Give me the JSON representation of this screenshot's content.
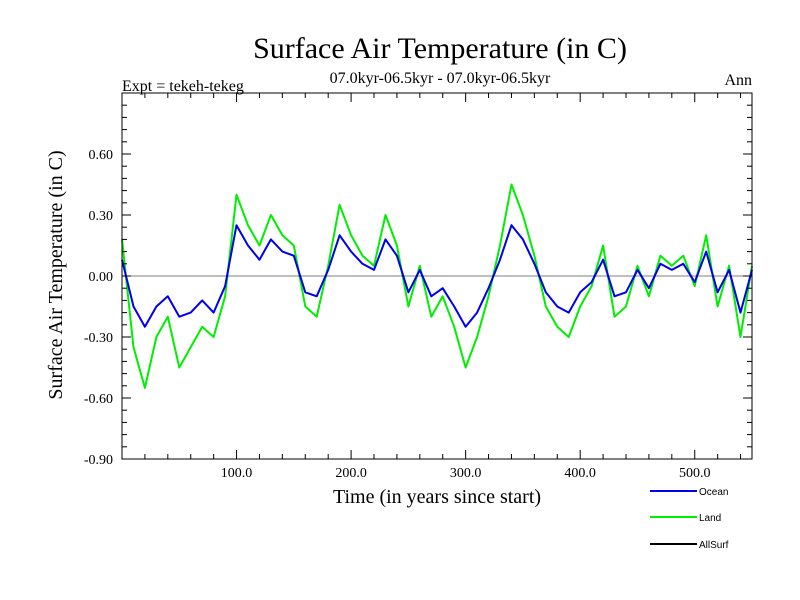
{
  "chart_data": {
    "type": "line",
    "title": "Surface Air Temperature (in C)",
    "subtitle": "07.0kyr-06.5kyr - 07.0kyr-06.5kyr",
    "expt_label": "Expt = tekeh-tekeg",
    "period_label": "Ann",
    "xlabel": "Time (in years since start)",
    "ylabel": "Surface Air Temperature (in C)",
    "xlim": [
      0,
      550
    ],
    "ylim": [
      -0.9,
      0.9
    ],
    "x_ticks": [
      100,
      200,
      300,
      400,
      500
    ],
    "x_tick_labels": [
      "100.0",
      "200.0",
      "300.0",
      "400.0",
      "500.0"
    ],
    "y_ticks": [
      -0.9,
      -0.6,
      -0.3,
      0.0,
      0.3,
      0.6
    ],
    "y_tick_labels": [
      "-0.90",
      "-0.60",
      "-0.30",
      "0.00",
      "0.30",
      "0.60"
    ],
    "reference_line": 0.0,
    "series": [
      {
        "name": "Land",
        "color": "#00ee00",
        "x": [
          0,
          10,
          20,
          30,
          40,
          50,
          60,
          70,
          80,
          90,
          100,
          110,
          120,
          130,
          140,
          150,
          160,
          170,
          180,
          190,
          200,
          210,
          220,
          230,
          240,
          250,
          260,
          270,
          280,
          290,
          300,
          310,
          320,
          330,
          340,
          350,
          360,
          370,
          380,
          390,
          400,
          410,
          420,
          430,
          440,
          450,
          460,
          470,
          480,
          490,
          500,
          510,
          520,
          530,
          540,
          550
        ],
        "values": [
          0.18,
          -0.35,
          -0.55,
          -0.3,
          -0.2,
          -0.45,
          -0.35,
          -0.25,
          -0.3,
          -0.1,
          0.4,
          0.25,
          0.15,
          0.3,
          0.2,
          0.15,
          -0.15,
          -0.2,
          0.05,
          0.35,
          0.2,
          0.1,
          0.05,
          0.3,
          0.15,
          -0.15,
          0.05,
          -0.2,
          -0.1,
          -0.25,
          -0.45,
          -0.3,
          -0.1,
          0.15,
          0.45,
          0.3,
          0.1,
          -0.15,
          -0.25,
          -0.3,
          -0.15,
          -0.05,
          0.15,
          -0.2,
          -0.15,
          0.05,
          -0.1,
          0.1,
          0.05,
          0.1,
          -0.05,
          0.2,
          -0.15,
          0.05,
          -0.3,
          0.05
        ]
      },
      {
        "name": "Ocean",
        "color": "#0000ee",
        "x": [
          0,
          10,
          20,
          30,
          40,
          50,
          60,
          70,
          80,
          90,
          100,
          110,
          120,
          130,
          140,
          150,
          160,
          170,
          180,
          190,
          200,
          210,
          220,
          230,
          240,
          250,
          260,
          270,
          280,
          290,
          300,
          310,
          320,
          330,
          340,
          350,
          360,
          370,
          380,
          390,
          400,
          410,
          420,
          430,
          440,
          450,
          460,
          470,
          480,
          490,
          500,
          510,
          520,
          530,
          540,
          550
        ],
        "values": [
          0.08,
          -0.15,
          -0.25,
          -0.15,
          -0.1,
          -0.2,
          -0.18,
          -0.12,
          -0.18,
          -0.05,
          0.25,
          0.15,
          0.08,
          0.18,
          0.12,
          0.1,
          -0.08,
          -0.1,
          0.03,
          0.2,
          0.12,
          0.06,
          0.03,
          0.18,
          0.1,
          -0.08,
          0.03,
          -0.1,
          -0.06,
          -0.15,
          -0.25,
          -0.18,
          -0.06,
          0.08,
          0.25,
          0.18,
          0.06,
          -0.08,
          -0.15,
          -0.18,
          -0.08,
          -0.03,
          0.08,
          -0.1,
          -0.08,
          0.03,
          -0.06,
          0.06,
          0.03,
          0.06,
          -0.03,
          0.12,
          -0.08,
          0.03,
          -0.18,
          0.03
        ]
      },
      {
        "name": "AllSurf",
        "color": "#000000",
        "x": [],
        "values": []
      }
    ],
    "legend": [
      "Ocean",
      "Land",
      "AllSurf"
    ],
    "legend_position": "bottom-right"
  }
}
